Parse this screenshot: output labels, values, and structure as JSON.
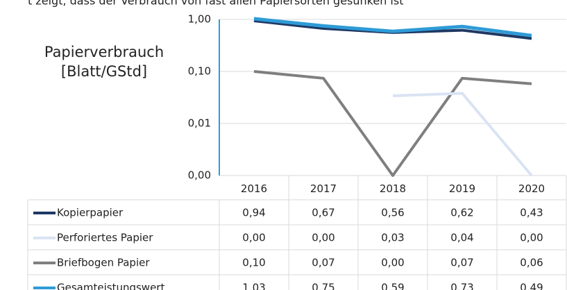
{
  "header": "t zeigt, dass der Verbrauch von fast allen Papiersorten gesunken ist",
  "chart_data": {
    "type": "line",
    "y_label": [
      "Papierverbrauch",
      "[Blatt/GStd]"
    ],
    "categories": [
      "2016",
      "2017",
      "2018",
      "2019",
      "2020"
    ],
    "log_scale": true,
    "grid": true,
    "ylim": [
      0.001,
      1
    ],
    "yticks": [
      {
        "value": 0.001,
        "label": "0,00"
      },
      {
        "value": 0.01,
        "label": "0,01"
      },
      {
        "value": 0.1,
        "label": "0,10"
      },
      {
        "value": 1,
        "label": "1,00"
      }
    ],
    "series": [
      {
        "name": "Kopierpapier",
        "color": "#1f3864",
        "values": [
          0.94,
          0.67,
          0.56,
          0.62,
          0.43
        ],
        "value_labels": [
          "0,94",
          "0,67",
          "0,56",
          "0,62",
          "0,43"
        ]
      },
      {
        "name": "Perforiertes Papier",
        "color": "#dae3f3",
        "values": [
          0,
          0,
          0.034,
          0.038,
          0.001
        ],
        "value_labels": [
          "0,00",
          "0,00",
          "0,03",
          "0,04",
          "0,00"
        ]
      },
      {
        "name": "Briefbogen Papier",
        "color": "#7f7f7f",
        "values": [
          0.1,
          0.074,
          0.001,
          0.074,
          0.058
        ],
        "value_labels": [
          "0,10",
          "0,07",
          "0,00",
          "0,07",
          "0,06"
        ]
      },
      {
        "name": "Gesamteistungswert",
        "color": "#2e9bd6",
        "values": [
          1.03,
          0.75,
          0.59,
          0.73,
          0.49
        ],
        "value_labels": [
          "1,03",
          "0,75",
          "0,59",
          "0,73",
          "0,49"
        ]
      }
    ]
  }
}
